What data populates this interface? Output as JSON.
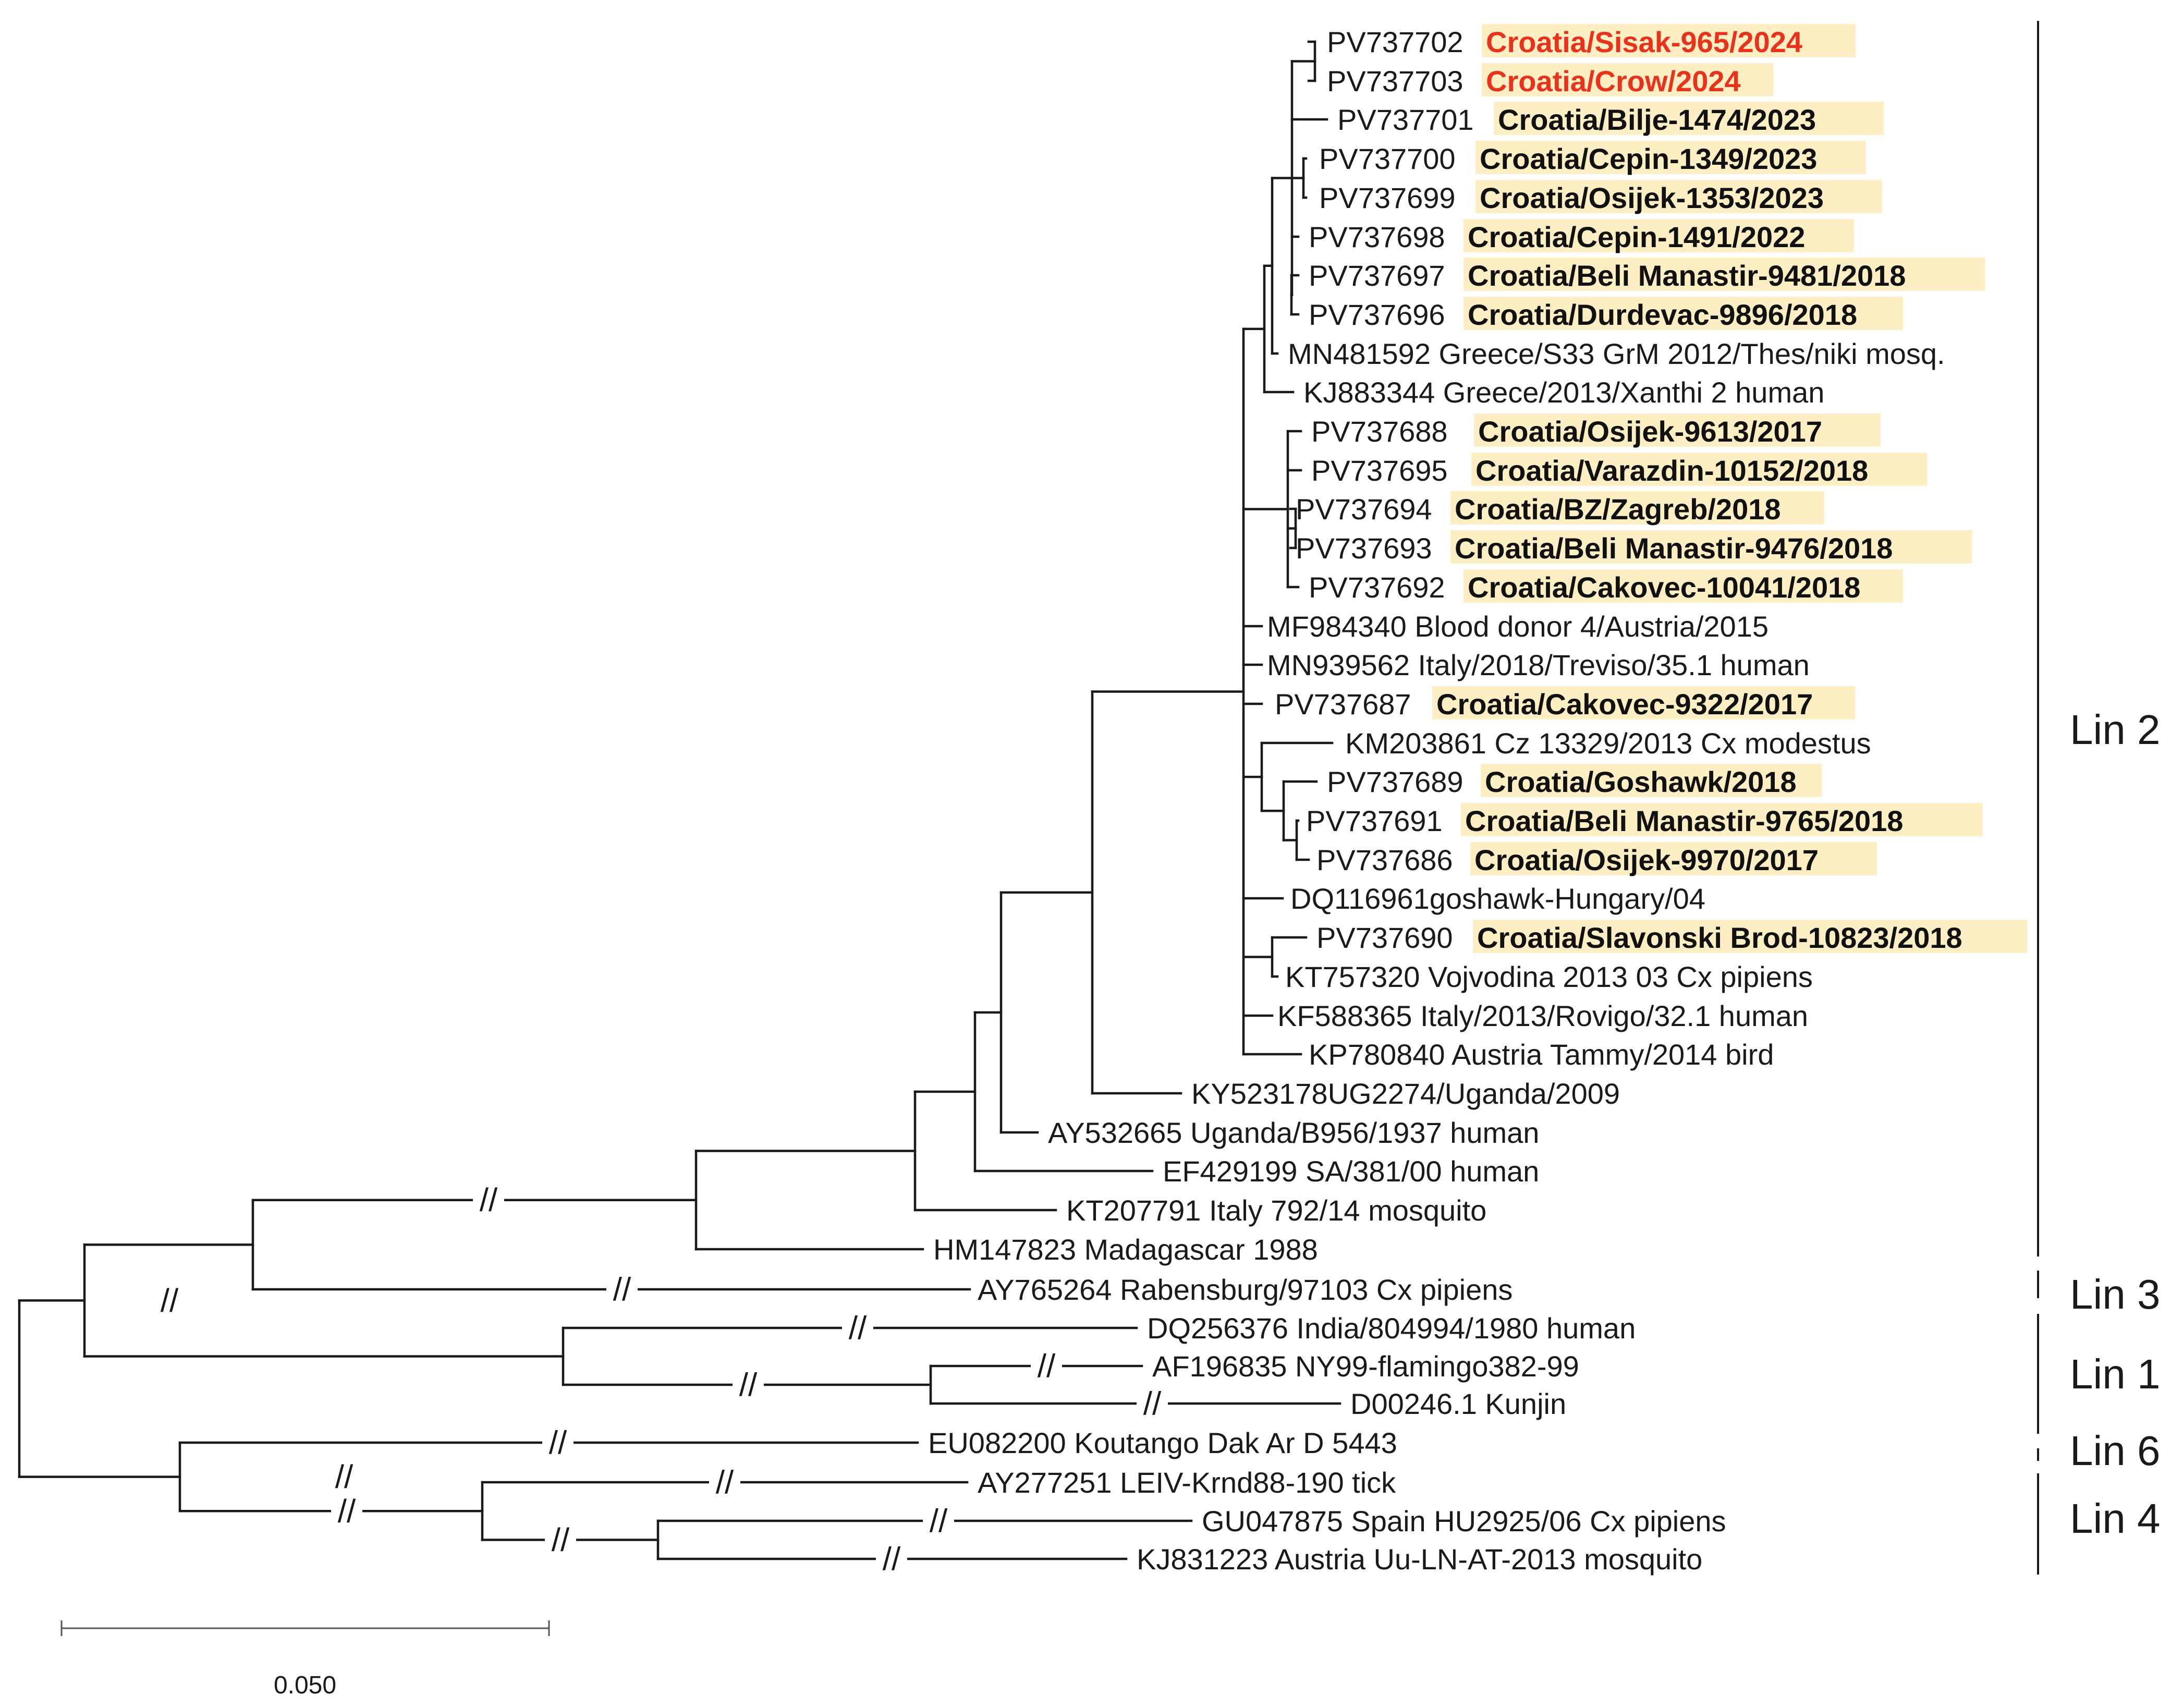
{
  "colors": {
    "highlight": "#fdeec4",
    "new_isolate": "#e8321c",
    "croatian": "#111111",
    "line": "#1a1a1a"
  },
  "break_mark": "//",
  "scale_bar": {
    "label": "0.050"
  },
  "lineages": [
    {
      "label": "Lin 2"
    },
    {
      "label": "Lin 3"
    },
    {
      "label": "Lin 1"
    },
    {
      "label": "Lin 6"
    },
    {
      "label": "Lin 4"
    }
  ],
  "taxa": [
    {
      "accession": "PV737702",
      "name": "Croatia/Sisak-965/2024",
      "style": "new"
    },
    {
      "accession": "PV737703",
      "name": "Croatia/Crow/2024",
      "style": "new"
    },
    {
      "accession": "PV737701",
      "name": "Croatia/Bilje-1474/2023",
      "style": "croatia"
    },
    {
      "accession": "PV737700",
      "name": "Croatia/Cepin-1349/2023",
      "style": "croatia"
    },
    {
      "accession": "PV737699",
      "name": "Croatia/Osijek-1353/2023",
      "style": "croatia"
    },
    {
      "accession": "PV737698",
      "name": "Croatia/Cepin-1491/2022",
      "style": "croatia"
    },
    {
      "accession": "PV737697",
      "name": "Croatia/Beli Manastir-9481/2018",
      "style": "croatia"
    },
    {
      "accession": "PV737696",
      "name": "Croatia/Durdevac-9896/2018",
      "style": "croatia"
    },
    {
      "accession": "MN481592",
      "name": "Greece/S33 GrM 2012/Thes/niki mosq.",
      "style": "plain"
    },
    {
      "accession": "KJ883344",
      "name": "Greece/2013/Xanthi 2 human",
      "style": "plain"
    },
    {
      "accession": "PV737688",
      "name": "Croatia/Osijek-9613/2017",
      "style": "croatia"
    },
    {
      "accession": "PV737695",
      "name": "Croatia/Varazdin-10152/2018",
      "style": "croatia"
    },
    {
      "accession": "PV737694",
      "name": "Croatia/BZ/Zagreb/2018",
      "style": "croatia"
    },
    {
      "accession": "PV737693",
      "name": "Croatia/Beli Manastir-9476/2018",
      "style": "croatia"
    },
    {
      "accession": "PV737692",
      "name": "Croatia/Cakovec-10041/2018",
      "style": "croatia"
    },
    {
      "accession": "MF984340",
      "name": "Blood donor 4/Austria/2015",
      "style": "plain"
    },
    {
      "accession": "MN939562",
      "name": "Italy/2018/Treviso/35.1 human",
      "style": "plain"
    },
    {
      "accession": "PV737687",
      "name": "Croatia/Cakovec-9322/2017",
      "style": "croatia"
    },
    {
      "accession": "KM203861",
      "name": "Cz 13329/2013 Cx modestus",
      "style": "plain"
    },
    {
      "accession": "PV737689",
      "name": "Croatia/Goshawk/2018",
      "style": "croatia"
    },
    {
      "accession": "PV737691",
      "name": "Croatia/Beli Manastir-9765/2018",
      "style": "croatia"
    },
    {
      "accession": "PV737686",
      "name": "Croatia/Osijek-9970/2017",
      "style": "croatia"
    },
    {
      "accession": "",
      "name": "DQ116961goshawk-Hungary/04",
      "style": "plain"
    },
    {
      "accession": "PV737690",
      "name": "Croatia/Slavonski Brod-10823/2018",
      "style": "croatia"
    },
    {
      "accession": "KT757320",
      "name": "Vojvodina 2013 03 Cx pipiens",
      "style": "plain"
    },
    {
      "accession": "KF588365",
      "name": "Italy/2013/Rovigo/32.1 human",
      "style": "plain"
    },
    {
      "accession": "KP780840",
      "name": "Austria Tammy/2014 bird",
      "style": "plain"
    },
    {
      "accession": "",
      "name": "KY523178UG2274/Uganda/2009",
      "style": "plain"
    },
    {
      "accession": "AY532665",
      "name": "Uganda/B956/1937 human",
      "style": "plain"
    },
    {
      "accession": "EF429199",
      "name": "SA/381/00 human",
      "style": "plain"
    },
    {
      "accession": "KT207791",
      "name": "Italy 792/14 mosquito",
      "style": "plain"
    },
    {
      "accession": "HM147823",
      "name": "Madagascar 1988",
      "style": "plain"
    },
    {
      "accession": "AY765264",
      "name": "Rabensburg/97103 Cx pipiens",
      "style": "plain"
    },
    {
      "accession": "DQ256376",
      "name": "India/804994/1980 human",
      "style": "plain"
    },
    {
      "accession": "AF196835",
      "name": "NY99-flamingo382-99",
      "style": "plain"
    },
    {
      "accession": "D00246.1",
      "name": "Kunjin",
      "style": "plain"
    },
    {
      "accession": "EU082200",
      "name": "Koutango Dak Ar D 5443",
      "style": "plain"
    },
    {
      "accession": "AY277251",
      "name": "LEIV-Krnd88-190 tick",
      "style": "plain"
    },
    {
      "accession": "GU047875",
      "name": "Spain HU2925/06 Cx pipiens",
      "style": "plain"
    },
    {
      "accession": "KJ831223",
      "name": "Austria Uu-LN-AT-2013 mosquito",
      "style": "plain"
    }
  ]
}
